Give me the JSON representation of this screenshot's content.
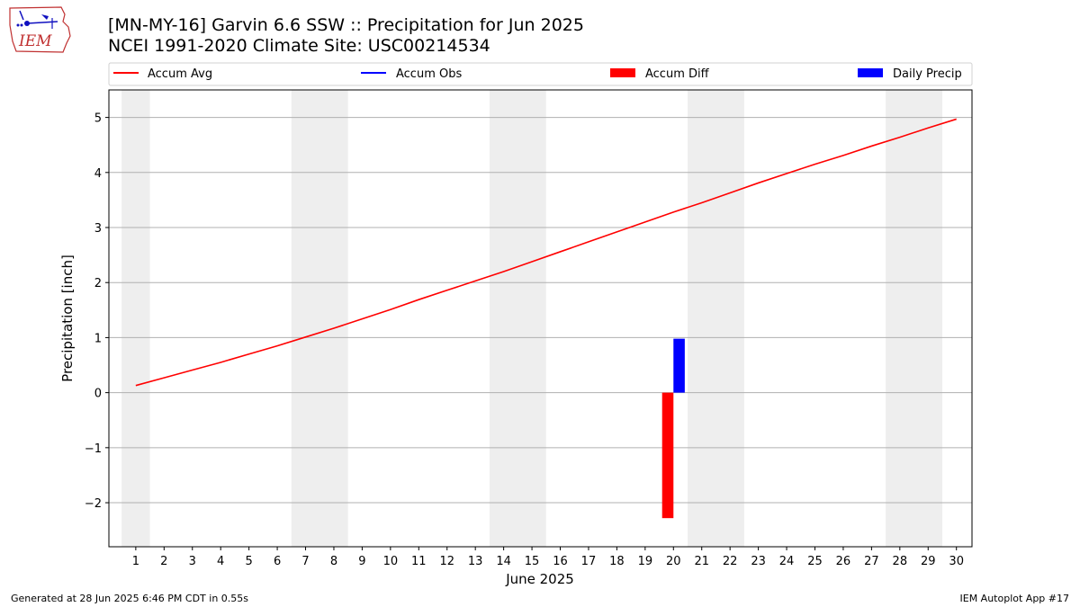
{
  "header": {
    "logo_text": "IEM",
    "title_line1": "[MN-MY-16] Garvin 6.6 SSW :: Precipitation for Jun 2025",
    "title_line2": "NCEI 1991-2020 Climate Site: USC00214534"
  },
  "footer": {
    "generated": "Generated at 28 Jun 2025 6:46 PM CDT in 0.55s",
    "app": "IEM Autoplot App #17"
  },
  "colors": {
    "accum_avg": "#ff0000",
    "accum_obs": "#0000ff",
    "accum_diff": "#ff0000",
    "daily_precip": "#0000ff",
    "weekend_shade": "#eeeeee",
    "grid": "#b0b0b0"
  },
  "chart_data": {
    "type": "line",
    "xlabel": "June 2025",
    "ylabel": "Precipitation [inch]",
    "ylim": [
      -2.8,
      5.5
    ],
    "yticks": [
      -2,
      -1,
      0,
      1,
      2,
      3,
      4,
      5
    ],
    "ytick_labels": [
      "−2",
      "−1",
      "0",
      "1",
      "2",
      "3",
      "4",
      "5"
    ],
    "x": [
      1,
      2,
      3,
      4,
      5,
      6,
      7,
      8,
      9,
      10,
      11,
      12,
      13,
      14,
      15,
      16,
      17,
      18,
      19,
      20,
      21,
      22,
      23,
      24,
      25,
      26,
      27,
      28,
      29,
      30
    ],
    "xtick_labels": [
      "1",
      "2",
      "3",
      "4",
      "5",
      "6",
      "7",
      "8",
      "9",
      "10",
      "11",
      "12",
      "13",
      "14",
      "15",
      "16",
      "17",
      "18",
      "19",
      "20",
      "21",
      "22",
      "23",
      "24",
      "25",
      "26",
      "27",
      "28",
      "29",
      "30"
    ],
    "grid": "horizontal",
    "legend_placement": "top",
    "weekend_days": [
      1,
      7,
      8,
      14,
      15,
      21,
      22,
      28,
      29
    ],
    "legend": [
      {
        "label": "Accum Avg",
        "kind": "line",
        "color": "#ff0000"
      },
      {
        "label": "Accum Obs",
        "kind": "line",
        "color": "#0000ff"
      },
      {
        "label": "Accum Diff",
        "kind": "bar",
        "color": "#ff0000"
      },
      {
        "label": "Daily Precip",
        "kind": "bar",
        "color": "#0000ff"
      }
    ],
    "series": [
      {
        "name": "Accum Avg",
        "kind": "line",
        "values": [
          0.13,
          0.27,
          0.41,
          0.55,
          0.7,
          0.85,
          1.01,
          1.17,
          1.34,
          1.51,
          1.69,
          1.86,
          2.03,
          2.2,
          2.38,
          2.56,
          2.74,
          2.92,
          3.1,
          3.28,
          3.45,
          3.63,
          3.81,
          3.98,
          4.15,
          4.31,
          4.48,
          4.64,
          4.81,
          4.97
        ]
      },
      {
        "name": "Accum Diff",
        "kind": "bar",
        "x": [
          20
        ],
        "values": [
          -2.28
        ]
      },
      {
        "name": "Daily Precip",
        "kind": "bar",
        "x": [
          20
        ],
        "values": [
          0.98
        ]
      }
    ]
  }
}
